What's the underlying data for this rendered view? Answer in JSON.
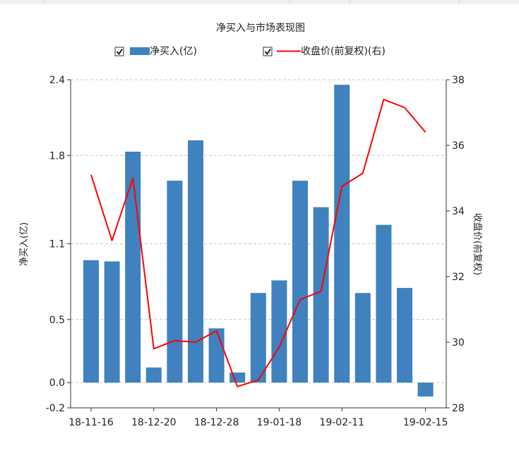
{
  "chart_data": {
    "type": "bar+line",
    "title": "净买入与市场表现图",
    "legend": {
      "placement": "top-center",
      "items": [
        {
          "label": "净买入(亿)",
          "checked": true,
          "kind": "bar",
          "color": "#3f82bf"
        },
        {
          "label": "收盘价(前复权)(右)",
          "checked": true,
          "kind": "line",
          "color": "#ff0000"
        }
      ]
    },
    "ylabel_left": "净买入(亿)",
    "ylabel_right": "收盘价(前复权)",
    "ylim_left": [
      -0.2,
      2.4
    ],
    "ylim_right": [
      28,
      38
    ],
    "yticks_left": [
      "2.4",
      "1.8",
      "1.1",
      "0.5",
      "0.0",
      "-0.2"
    ],
    "yticks_right": [
      "38",
      "36",
      "34",
      "32",
      "30",
      "28"
    ],
    "xtick_labels": [
      {
        "label": "18-11-16",
        "index": 0
      },
      {
        "label": "18-12-20",
        "index": 3
      },
      {
        "label": "18-12-28",
        "index": 6
      },
      {
        "label": "19-01-18",
        "index": 9
      },
      {
        "label": "19-02-11",
        "index": 12
      },
      {
        "label": "19-02-15",
        "index": 16
      }
    ],
    "grid": "horizontal-dashed",
    "series": [
      {
        "name": "净买入(亿)",
        "type": "bar",
        "color": "#3f82bf",
        "values": [
          0.97,
          0.96,
          1.83,
          0.12,
          1.6,
          1.92,
          0.43,
          0.08,
          0.71,
          0.81,
          1.6,
          1.39,
          2.36,
          0.71,
          1.25,
          0.75,
          -0.11
        ]
      },
      {
        "name": "收盘价(前复权)(右)",
        "type": "line",
        "color": "#ff0000",
        "axis": "right",
        "values": [
          35.1,
          33.1,
          35.0,
          29.8,
          30.05,
          30.0,
          30.35,
          28.65,
          28.85,
          29.85,
          31.3,
          31.55,
          34.75,
          35.15,
          37.4,
          37.15,
          36.4
        ]
      }
    ]
  }
}
